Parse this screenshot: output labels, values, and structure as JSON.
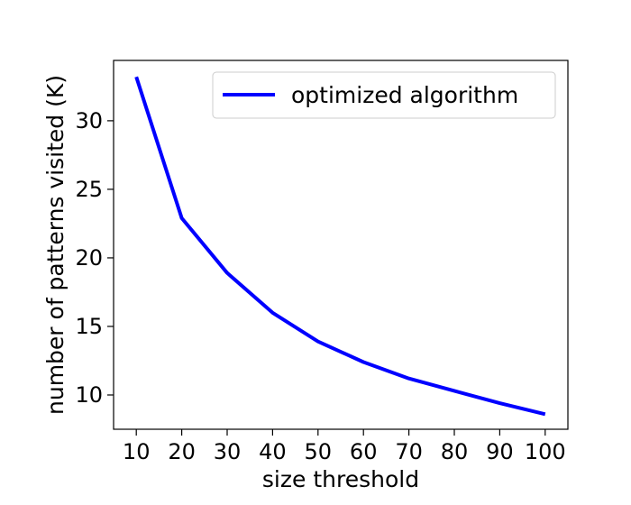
{
  "chart_data": {
    "type": "line",
    "xlabel": "size threshold",
    "ylabel": "number of patterns visited (K)",
    "x": [
      10,
      20,
      30,
      40,
      50,
      60,
      70,
      80,
      90,
      100
    ],
    "series": [
      {
        "name": "optimized algorithm",
        "color": "#0000ff",
        "values": [
          33.2,
          22.9,
          18.9,
          16.0,
          13.9,
          12.4,
          11.2,
          10.3,
          9.4,
          8.6
        ]
      }
    ],
    "xlim": [
      5,
      105
    ],
    "ylim": [
      7.5,
      34.4
    ],
    "xticks": [
      10,
      20,
      30,
      40,
      50,
      60,
      70,
      80,
      90,
      100
    ],
    "yticks": [
      10,
      15,
      20,
      25,
      30
    ],
    "grid": false,
    "legend_position": "top-right"
  }
}
